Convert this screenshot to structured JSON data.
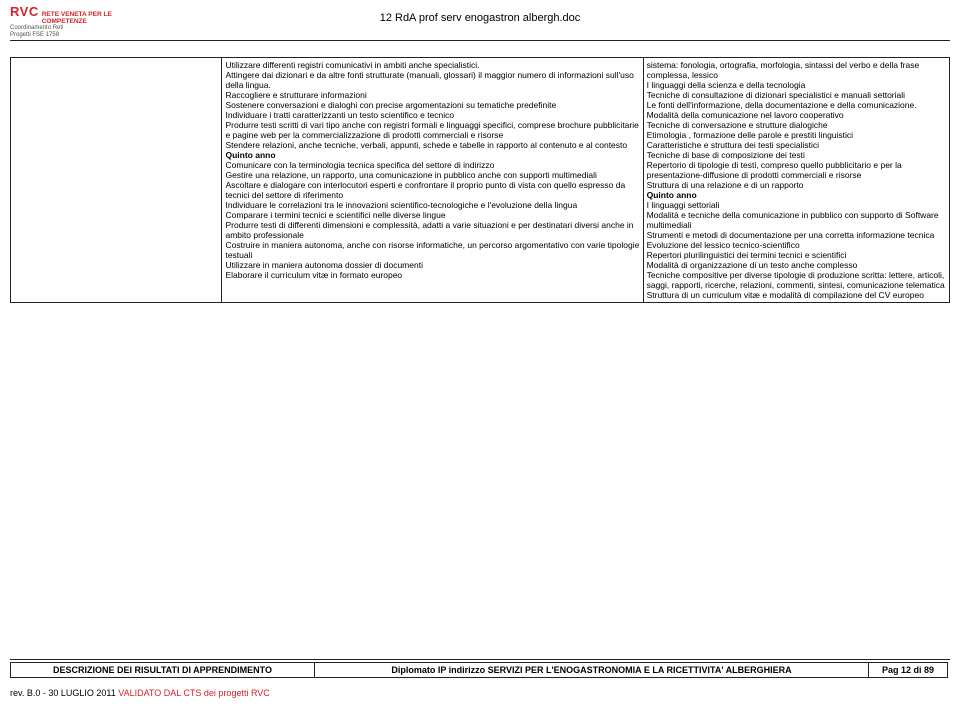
{
  "logo": {
    "acronym": "RVC",
    "line1": "RETE VENETA PER LE",
    "line2": "COMPETENZE",
    "sub1": "Coordinamento Reti",
    "sub2": "Progetti FSE 1758"
  },
  "header": {
    "title": "12 RdA prof serv enogastron albergh.doc"
  },
  "content": {
    "col_b_lines": [
      "Utilizzare differenti registri comunicativi in ambiti anche specialistici.",
      "Attingere dai dizionari e da altre fonti strutturate (manuali, glossari) il maggior numero di informazioni sull'uso della lingua.",
      " Raccogliere e strutturare informazioni",
      "Sostenere conversazioni e dialoghi con precise argomentazioni su tematiche predefinite",
      "Individuare i tratti caratterizzanti un testo scientifico e tecnico",
      "Produrre testi scritti di vari tipo anche con registri formali e linguaggi specifici, comprese brochure pubblicitarie e pagine web per la commercializzazione di prodotti commerciali e risorse",
      "Stendere  relazioni, anche tecniche, verbali, appunti, schede e tabelle   in rapporto al contenuto e al contesto"
    ],
    "col_b_bold1": "Quinto anno",
    "col_b_lines2": [
      "Comunicare con la terminologia tecnica specifica del settore di indirizzo",
      "Gestire una relazione, un rapporto, una comunicazione in pubblico  anche con  supporti multimediali",
      "Ascoltare e dialogare con interlocutori esperti e confrontare il proprio punto di vista con quello espresso da tecnici del settore di riferimento",
      "Individuare le correlazioni tra le innovazioni scientifico-tecnologiche e l'evoluzione della lingua",
      "Comparare i termini tecnici e scientifici nelle diverse lingue",
      "Produrre testi di differenti dimensioni e complessità, adatti a varie situazioni e per destinatari diversi anche in ambito professionale",
      "Costruire in maniera autonoma, anche con risorse informatiche, un percorso argomentativo con varie tipologie testuali",
      "Utilizzare in maniera autonoma dossier di documenti",
      "Elaborare il curriculum vitæ in formato europeo"
    ],
    "col_c_lines": [
      "sistema: fonologia, ortografia, morfologia, sintassi del verbo e della frase complessa, lessico",
      "I linguaggi della scienza e della tecnologia",
      "Tecniche di consultazione di dizionari specialistici e manuali settoriali",
      "Le fonti dell'informazione, della documentazione e  della comunicazione.",
      "Modalità della comunicazione nel lavoro cooperativo",
      "Tecniche di conversazione e strutture dialogiche",
      "Etimologia , formazione delle parole e prestiti linguistici",
      "Caratteristiche e struttura dei  testi  specialistici",
      "Tecniche di base di composizione dei testi",
      "Repertorio di tipologie di testi, compreso quello pubblicitario e per la presentazione-diffusione di prodotti commerciali e risorse",
      "Struttura di una relazione e di un rapporto"
    ],
    "col_c_bold1": "Quinto anno",
    "col_c_lines2": [
      "I linguaggi settoriali",
      "Modalità e tecniche della comunicazione in pubblico con supporto di Software multimediali",
      "Strumenti e metodi di documentazione per una corretta informazione tecnica",
      "Evoluzione del lessico tecnico-scientifico",
      "Repertori plurilinguistici dei termini tecnici e scientifici",
      "Modalità di organizzazione  di un testo anche complesso",
      "Tecniche compositive per diverse tipologie di produzione scritta: lettere, articoli, saggi, rapporti, ricerche, relazioni, commenti, sintesi, comunicazione telematica",
      "Struttura di un curriculum vitæ e modalità di compilazione del CV europeo"
    ]
  },
  "footer": {
    "a": "DESCRIZIONE DEI RISULTATI DI APPRENDIMENTO",
    "b": "Diplomato IP indirizzo SERVIZI PER L'ENOGASTRONOMIA E LA RICETTIVITA' ALBERGHIERA",
    "c": "Pag 12 di 89"
  },
  "rev": {
    "black": "rev.  B.0 - 30 LUGLIO 2011 ",
    "red": "VALIDATO DAL CTS dei progetti RVC"
  }
}
